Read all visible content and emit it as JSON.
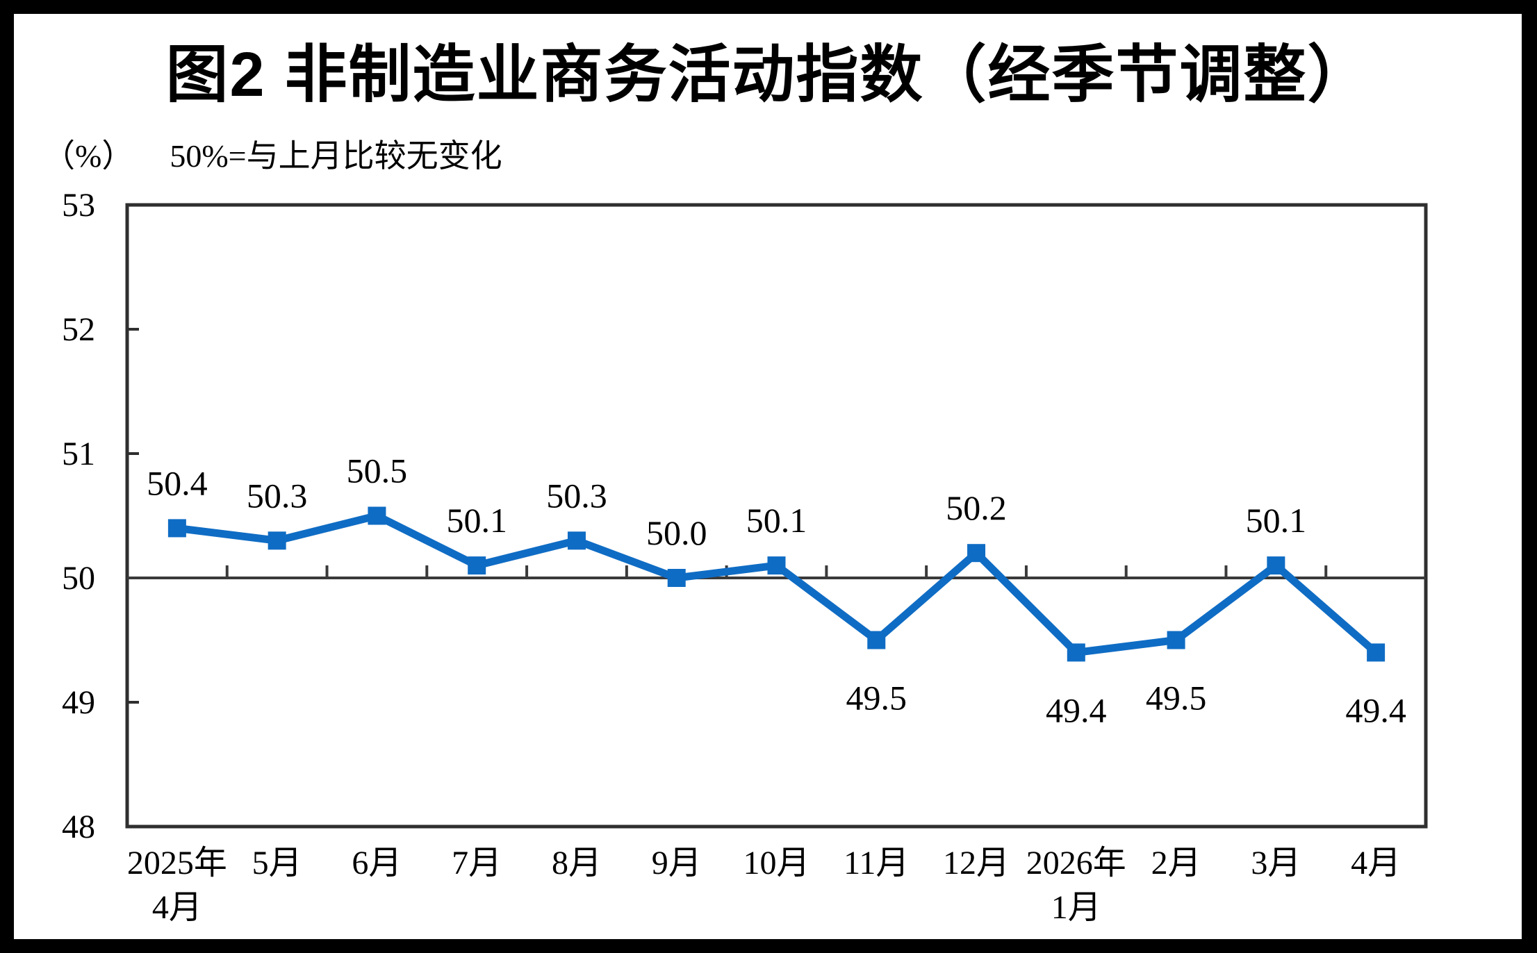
{
  "figure": {
    "title": "图2  非制造业商务活动指数（经季节调整）",
    "unit_label": "（%）",
    "reference_note": "50%=与上月比较无变化"
  },
  "chart_data": {
    "type": "line",
    "title": "图2  非制造业商务活动指数（经季节调整）",
    "unit": "（%）",
    "annotation": "50%=与上月比较无变化",
    "categories": [
      "2025年\n4月",
      "5月",
      "6月",
      "7月",
      "8月",
      "9月",
      "10月",
      "11月",
      "12月",
      "2026年\n1月",
      "2月",
      "3月",
      "4月"
    ],
    "values": [
      50.4,
      50.3,
      50.5,
      50.1,
      50.3,
      50.0,
      50.1,
      49.5,
      50.2,
      49.4,
      49.5,
      50.1,
      49.4
    ],
    "data_labels": [
      "50.4",
      "50.3",
      "50.5",
      "50.1",
      "50.3",
      "50.0",
      "50.1",
      "49.5",
      "50.2",
      "49.4",
      "49.5",
      "50.1",
      "49.4"
    ],
    "ylim": [
      48,
      53
    ],
    "yticks": [
      48,
      49,
      50,
      51,
      52,
      53
    ],
    "reference_line": 50,
    "grid": false,
    "legend": "none",
    "marker": "square",
    "line_color": "#0F6CC4",
    "axis_color": "#2F2F2F",
    "reference_line_color": "#3A3A3A"
  }
}
